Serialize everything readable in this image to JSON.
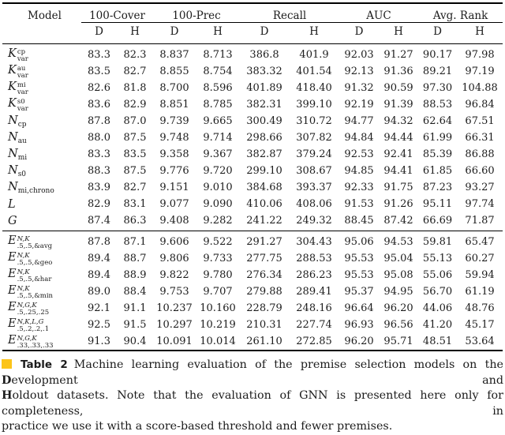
{
  "table": {
    "headers": {
      "model": "Model",
      "cover": "100-Cover",
      "prec": "100-Prec",
      "recall": "Recall",
      "auc": "AUC",
      "avgrank": "Avg. Rank"
    },
    "subheaders": [
      "D",
      "H",
      "D",
      "H",
      "D",
      "H",
      "D",
      "H",
      "D",
      "H"
    ],
    "sections": [
      {
        "rows": [
          {
            "model": {
              "base": "K",
              "sup": "cp",
              "sub": "var"
            },
            "values": [
              "83.3",
              "82.3",
              "8.837",
              "8.713",
              "386.8",
              "401.9",
              "92.03",
              "91.27",
              "90.17",
              "97.98"
            ]
          },
          {
            "model": {
              "base": "K",
              "sup": "au",
              "sub": "var"
            },
            "values": [
              "83.5",
              "82.7",
              "8.855",
              "8.754",
              "383.32",
              "401.54",
              "92.13",
              "91.36",
              "89.21",
              "97.19"
            ]
          },
          {
            "model": {
              "base": "K",
              "sup": "mi",
              "sub": "var"
            },
            "values": [
              "82.6",
              "81.8",
              "8.700",
              "8.596",
              "401.89",
              "418.40",
              "91.32",
              "90.59",
              "97.30",
              "104.88"
            ]
          },
          {
            "model": {
              "base": "K",
              "sup": "s0",
              "sub": "var"
            },
            "values": [
              "83.6",
              "82.9",
              "8.851",
              "8.785",
              "382.31",
              "399.10",
              "92.19",
              "91.39",
              "88.53",
              "96.84"
            ]
          },
          {
            "model": {
              "base": "N",
              "sub": "cp"
            },
            "values": [
              "87.8",
              "87.0",
              "9.739",
              "9.665",
              "300.49",
              "310.72",
              "94.77",
              "94.32",
              "62.64",
              "67.51"
            ]
          },
          {
            "model": {
              "base": "N",
              "sub": "au"
            },
            "values": [
              "88.0",
              "87.5",
              "9.748",
              "9.714",
              "298.66",
              "307.82",
              "94.84",
              "94.44",
              "61.99",
              "66.31"
            ]
          },
          {
            "model": {
              "base": "N",
              "sub": "mi"
            },
            "values": [
              "83.3",
              "83.5",
              "9.358",
              "9.367",
              "382.87",
              "379.24",
              "92.53",
              "92.41",
              "85.39",
              "86.88"
            ]
          },
          {
            "model": {
              "base": "N",
              "sub": "s0"
            },
            "values": [
              "88.3",
              "87.5",
              "9.776",
              "9.720",
              "299.10",
              "308.67",
              "94.85",
              "94.41",
              "61.85",
              "66.60"
            ]
          },
          {
            "model": {
              "base": "N",
              "sub": "mi,chrono"
            },
            "values": [
              "83.9",
              "82.7",
              "9.151",
              "9.010",
              "384.68",
              "393.37",
              "92.33",
              "91.75",
              "87.23",
              "93.27"
            ]
          },
          {
            "model": {
              "base": "L"
            },
            "values": [
              "82.9",
              "83.1",
              "9.077",
              "9.090",
              "410.06",
              "408.06",
              "91.53",
              "91.26",
              "95.11",
              "97.74"
            ]
          },
          {
            "model": {
              "base": "G"
            },
            "values": [
              "87.4",
              "86.3",
              "9.408",
              "9.282",
              "241.22",
              "249.32",
              "88.45",
              "87.42",
              "66.69",
              "71.87"
            ]
          }
        ]
      },
      {
        "rows": [
          {
            "model": {
              "base": "E",
              "sup": "N,K",
              "sup_italic": true,
              "sub": ".5,.5,&avg"
            },
            "values": [
              "87.8",
              "87.1",
              "9.606",
              "9.522",
              "291.27",
              "304.43",
              "95.06",
              "94.53",
              "59.81",
              "65.47"
            ]
          },
          {
            "model": {
              "base": "E",
              "sup": "N,K",
              "sup_italic": true,
              "sub": ".5,.5,&geo"
            },
            "values": [
              "89.4",
              "88.7",
              "9.806",
              "9.733",
              "277.75",
              "288.53",
              "95.53",
              "95.04",
              "55.13",
              "60.27"
            ]
          },
          {
            "model": {
              "base": "E",
              "sup": "N,K",
              "sup_italic": true,
              "sub": ".5,.5,&har"
            },
            "values": [
              "89.4",
              "88.9",
              "9.822",
              "9.780",
              "276.34",
              "286.23",
              "95.53",
              "95.08",
              "55.06",
              "59.94"
            ]
          },
          {
            "model": {
              "base": "E",
              "sup": "N,K",
              "sup_italic": true,
              "sub": ".5,.5,&min"
            },
            "values": [
              "89.0",
              "88.4",
              "9.753",
              "9.707",
              "279.88",
              "289.41",
              "95.37",
              "94.95",
              "56.70",
              "61.19"
            ]
          },
          {
            "model": {
              "base": "E",
              "sup": "N,G,K",
              "sup_italic": true,
              "sub": ".5,.25,.25"
            },
            "values": [
              "92.1",
              "91.1",
              "10.237",
              "10.160",
              "228.79",
              "248.16",
              "96.64",
              "96.20",
              "44.06",
              "48.76"
            ]
          },
          {
            "model": {
              "base": "E",
              "sup": "N,K,L,G",
              "sup_italic": true,
              "sub": ".5,.2,.2,.1"
            },
            "values": [
              "92.5",
              "91.5",
              "10.297",
              "10.219",
              "210.31",
              "227.74",
              "96.93",
              "96.56",
              "41.20",
              "45.17"
            ]
          },
          {
            "model": {
              "base": "E",
              "sup": "N,G,K",
              "sup_italic": true,
              "sub": ".33,.33,.33"
            },
            "values": [
              "91.3",
              "90.4",
              "10.091",
              "10.014",
              "261.10",
              "272.85",
              "96.20",
              "95.71",
              "48.51",
              "53.64"
            ]
          }
        ]
      }
    ]
  },
  "caption": {
    "marker_color": "#FCC419",
    "tag": "Table 2",
    "line1_text": "Machine learning evaluation of the premise selection models on the",
    "line1_bold": "D",
    "line1_rest": "evelopment and",
    "line2_bold": "H",
    "line2_rest": "oldout datasets. Note that the evaluation of GNN is presented here only for completeness, in",
    "line3": "practice we use it with a score-based threshold and fewer premises."
  }
}
